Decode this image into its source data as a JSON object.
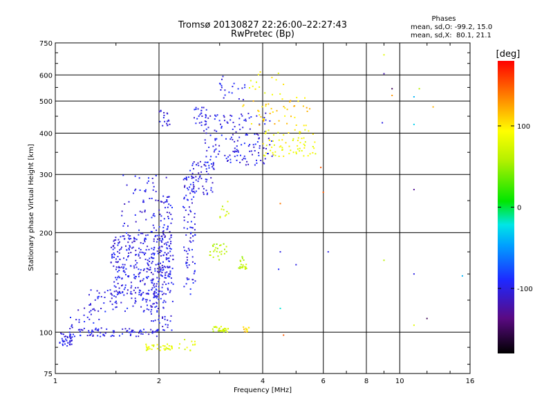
{
  "title": "Tromsø 20130827 22:26:00–22:27:43",
  "subtitle": "RwPretec (Bp)",
  "stats": {
    "header": "Phases",
    "line1": "mean, sd,O: -99.2, 15.0",
    "line2": "mean, sd,X:  80.1, 21.1"
  },
  "colorbar": {
    "label": "[deg]",
    "range": [
      -180,
      180
    ],
    "ticks": [
      {
        "value": 100,
        "label": "100"
      },
      {
        "value": 0,
        "label": "0"
      },
      {
        "value": -100,
        "label": "-100"
      }
    ]
  },
  "chart_data": {
    "type": "scatter",
    "xlabel": "Frequency [MHz]",
    "ylabel": "Stationary phase Virtual Height [km]",
    "xscale": "log",
    "yscale": "log",
    "xlim": [
      1,
      16
    ],
    "ylim": [
      75,
      750
    ],
    "grid": true,
    "xticks": [
      {
        "value": 1,
        "label": "1"
      },
      {
        "value": 2,
        "label": "2"
      },
      {
        "value": 4,
        "label": "4"
      },
      {
        "value": 6,
        "label": "6"
      },
      {
        "value": 8,
        "label": "8"
      },
      {
        "value": 10,
        "label": "10"
      },
      {
        "value": 16,
        "label": "16"
      }
    ],
    "yticks": [
      {
        "value": 75,
        "label": "75"
      },
      {
        "value": 100,
        "label": "100"
      },
      {
        "value": 200,
        "label": "200"
      },
      {
        "value": 300,
        "label": "300"
      },
      {
        "value": 400,
        "label": "400"
      },
      {
        "value": 500,
        "label": "500"
      },
      {
        "value": 600,
        "label": "600"
      },
      {
        "value": 750,
        "label": "750"
      }
    ],
    "clusters": [
      {
        "mode": "O",
        "f": [
          1.03,
          1.12
        ],
        "h": [
          90,
          100
        ],
        "phase": -100,
        "n": 40
      },
      {
        "mode": "O",
        "f": [
          1.1,
          2.0
        ],
        "h": [
          97,
          103
        ],
        "phase": -100,
        "n": 80
      },
      {
        "mode": "O",
        "f": [
          1.1,
          1.35
        ],
        "h": [
          100,
          120
        ],
        "phase": -100,
        "n": 25
      },
      {
        "mode": "O",
        "f": [
          1.25,
          2.05
        ],
        "h": [
          115,
          135
        ],
        "phase": -100,
        "n": 90
      },
      {
        "mode": "O",
        "f": [
          1.45,
          2.2
        ],
        "h": [
          130,
          200
        ],
        "phase": -100,
        "n": 320
      },
      {
        "mode": "O",
        "f": [
          1.55,
          2.15
        ],
        "h": [
          200,
          300
        ],
        "phase": -100,
        "n": 55
      },
      {
        "mode": "O",
        "f": [
          1.9,
          2.2
        ],
        "h": [
          100,
          260
        ],
        "phase": -100,
        "n": 130
      },
      {
        "mode": "O",
        "f": [
          2.0,
          2.15
        ],
        "h": [
          420,
          470
        ],
        "phase": -100,
        "n": 18
      },
      {
        "mode": "O",
        "f": [
          2.35,
          2.55
        ],
        "h": [
          130,
          300
        ],
        "phase": -100,
        "n": 95
      },
      {
        "mode": "O",
        "f": [
          2.45,
          2.9
        ],
        "h": [
          260,
          330
        ],
        "phase": -100,
        "n": 60
      },
      {
        "mode": "O",
        "f": [
          2.5,
          2.75
        ],
        "h": [
          420,
          480
        ],
        "phase": -100,
        "n": 25
      },
      {
        "mode": "O",
        "f": [
          2.7,
          4.3
        ],
        "h": [
          320,
          460
        ],
        "phase": -100,
        "n": 150
      },
      {
        "mode": "O",
        "f": [
          3.0,
          3.6
        ],
        "h": [
          500,
          600
        ],
        "phase": -100,
        "n": 20
      },
      {
        "mode": "X",
        "f": [
          1.8,
          2.2
        ],
        "h": [
          88,
          92
        ],
        "phase": 80,
        "n": 35
      },
      {
        "mode": "X",
        "f": [
          2.25,
          2.55
        ],
        "h": [
          88,
          95
        ],
        "phase": 80,
        "n": 12
      },
      {
        "mode": "X",
        "f": [
          2.85,
          3.2
        ],
        "h": [
          100,
          104
        ],
        "phase": 70,
        "n": 30
      },
      {
        "mode": "X",
        "f": [
          3.5,
          3.65
        ],
        "h": [
          100,
          104
        ],
        "phase": 110,
        "n": 10
      },
      {
        "mode": "X",
        "f": [
          2.8,
          3.15
        ],
        "h": [
          165,
          185
        ],
        "phase": 60,
        "n": 25
      },
      {
        "mode": "X",
        "f": [
          3.4,
          3.6
        ],
        "h": [
          155,
          170
        ],
        "phase": 60,
        "n": 20
      },
      {
        "mode": "X",
        "f": [
          3.0,
          3.2
        ],
        "h": [
          220,
          250
        ],
        "phase": 70,
        "n": 10
      },
      {
        "mode": "X",
        "f": [
          4.0,
          5.7
        ],
        "h": [
          340,
          410
        ],
        "phase": 90,
        "n": 70
      },
      {
        "mode": "X",
        "f": [
          3.5,
          5.5
        ],
        "h": [
          420,
          520
        ],
        "phase": 110,
        "n": 45
      },
      {
        "mode": "X",
        "f": [
          3.6,
          4.6
        ],
        "h": [
          520,
          650
        ],
        "phase": 90,
        "n": 15
      }
    ],
    "isolated": [
      {
        "f": 6.2,
        "h": 175,
        "phase": -100
      },
      {
        "f": 6.0,
        "h": 265,
        "phase": 150
      },
      {
        "f": 5.9,
        "h": 315,
        "phase": 150
      },
      {
        "f": 4.5,
        "h": 245,
        "phase": 140
      },
      {
        "f": 4.5,
        "h": 175,
        "phase": -100
      },
      {
        "f": 4.45,
        "h": 155,
        "phase": -90
      },
      {
        "f": 4.5,
        "h": 118,
        "phase": -20
      },
      {
        "f": 4.6,
        "h": 98,
        "phase": 150
      },
      {
        "f": 5.0,
        "h": 160,
        "phase": -100
      },
      {
        "f": 9.0,
        "h": 690,
        "phase": 80
      },
      {
        "f": 9.0,
        "h": 605,
        "phase": -120
      },
      {
        "f": 9.5,
        "h": 545,
        "phase": -150
      },
      {
        "f": 9.5,
        "h": 520,
        "phase": 130
      },
      {
        "f": 8.9,
        "h": 430,
        "phase": -100
      },
      {
        "f": 9.0,
        "h": 165,
        "phase": 60
      },
      {
        "f": 11.0,
        "h": 515,
        "phase": -40
      },
      {
        "f": 11.4,
        "h": 545,
        "phase": 60
      },
      {
        "f": 11.0,
        "h": 425,
        "phase": -30
      },
      {
        "f": 12.5,
        "h": 480,
        "phase": 120
      },
      {
        "f": 11.0,
        "h": 270,
        "phase": -130
      },
      {
        "f": 11.0,
        "h": 150,
        "phase": -100
      },
      {
        "f": 11.0,
        "h": 105,
        "phase": 80
      },
      {
        "f": 12.0,
        "h": 110,
        "phase": -150
      },
      {
        "f": 15.2,
        "h": 148,
        "phase": -40
      }
    ]
  }
}
